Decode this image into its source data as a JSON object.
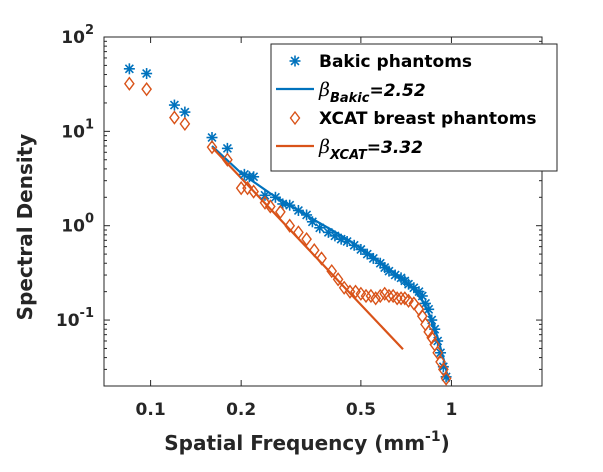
{
  "chart_data": {
    "type": "scatter",
    "xscale": "log",
    "yscale": "log",
    "xlim": [
      0.07,
      2.0
    ],
    "ylim": [
      0.02,
      100
    ],
    "xlabel": "Spatial Frequency (mm",
    "xlabel_exp": "-1",
    "xlabel_close": ")",
    "ylabel": "Spectral Density",
    "xticks": [
      {
        "value": 0.1,
        "label": "0.1"
      },
      {
        "value": 0.2,
        "label": "0.2"
      },
      {
        "value": 0.5,
        "label": "0.5"
      },
      {
        "value": 1,
        "label": "1"
      }
    ],
    "yticks": [
      {
        "value": 100,
        "base": "10",
        "exp": "2"
      },
      {
        "value": 10,
        "base": "10",
        "exp": "1"
      },
      {
        "value": 1,
        "base": "10",
        "exp": "0"
      },
      {
        "value": 0.1,
        "base": "10",
        "exp": "-1"
      }
    ],
    "legend_position": "top-right",
    "series": [
      {
        "name": "Bakic phantoms",
        "kind": "points",
        "marker": "asterisk",
        "color": "#0072BD",
        "x": [
          0.085,
          0.097,
          0.12,
          0.13,
          0.16,
          0.18,
          0.205,
          0.213,
          0.22,
          0.24,
          0.26,
          0.275,
          0.29,
          0.31,
          0.33,
          0.345,
          0.365,
          0.39,
          0.41,
          0.43,
          0.45,
          0.475,
          0.5,
          0.525,
          0.55,
          0.58,
          0.6,
          0.62,
          0.65,
          0.68,
          0.7,
          0.72,
          0.75,
          0.78,
          0.8,
          0.82,
          0.84,
          0.86,
          0.88,
          0.9,
          0.92,
          0.94,
          0.96
        ],
        "y": [
          46,
          41,
          19,
          16,
          8.6,
          6.6,
          3.5,
          3.3,
          3.3,
          2.1,
          2.0,
          1.7,
          1.65,
          1.45,
          1.3,
          1.1,
          0.95,
          0.85,
          0.78,
          0.72,
          0.68,
          0.62,
          0.56,
          0.5,
          0.45,
          0.4,
          0.36,
          0.33,
          0.3,
          0.28,
          0.26,
          0.24,
          0.22,
          0.2,
          0.18,
          0.15,
          0.13,
          0.1,
          0.08,
          0.06,
          0.045,
          0.032,
          0.025
        ]
      },
      {
        "name": "β",
        "name_sub": "Bakic",
        "name_suffix": "=2.52",
        "kind": "line",
        "color": "#0072BD",
        "x": [
          0.16,
          0.2,
          0.25,
          0.3,
          0.35,
          0.4,
          0.45,
          0.5,
          0.55,
          0.6,
          0.65,
          0.7,
          0.75,
          0.8,
          0.85,
          0.9,
          0.95,
          0.98
        ],
        "y": [
          7.0,
          3.6,
          2.2,
          1.55,
          1.15,
          0.9,
          0.72,
          0.58,
          0.47,
          0.38,
          0.31,
          0.26,
          0.21,
          0.16,
          0.11,
          0.065,
          0.035,
          0.022
        ]
      },
      {
        "name": "XCAT breast phantoms",
        "kind": "points",
        "marker": "diamond",
        "color": "#D95319",
        "x": [
          0.085,
          0.097,
          0.12,
          0.13,
          0.16,
          0.18,
          0.2,
          0.21,
          0.22,
          0.24,
          0.25,
          0.27,
          0.29,
          0.31,
          0.33,
          0.35,
          0.37,
          0.4,
          0.42,
          0.44,
          0.46,
          0.48,
          0.5,
          0.52,
          0.54,
          0.56,
          0.58,
          0.6,
          0.62,
          0.64,
          0.66,
          0.68,
          0.7,
          0.72,
          0.75,
          0.78,
          0.8,
          0.82,
          0.84,
          0.86,
          0.88,
          0.9,
          0.92,
          0.94,
          0.96
        ],
        "y": [
          32,
          28,
          14,
          12,
          6.8,
          5.0,
          2.5,
          2.5,
          2.3,
          1.75,
          1.6,
          1.4,
          1.0,
          0.85,
          0.72,
          0.55,
          0.45,
          0.33,
          0.27,
          0.22,
          0.2,
          0.2,
          0.19,
          0.18,
          0.18,
          0.17,
          0.18,
          0.19,
          0.18,
          0.18,
          0.17,
          0.17,
          0.17,
          0.16,
          0.15,
          0.13,
          0.11,
          0.09,
          0.075,
          0.065,
          0.055,
          0.045,
          0.036,
          0.03,
          0.024
        ]
      },
      {
        "name": "β",
        "name_sub": "XCAT",
        "name_suffix": "=3.32",
        "kind": "line",
        "color": "#D95319",
        "x": [
          0.16,
          0.69
        ],
        "y": [
          6.8,
          0.049
        ]
      }
    ]
  }
}
